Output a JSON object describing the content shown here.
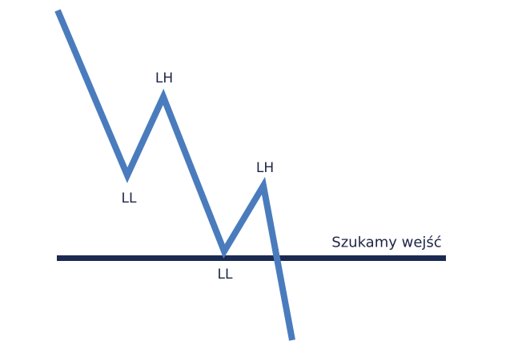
{
  "colors": {
    "price_line": "#4a7cbd",
    "level_line": "#1b2a52",
    "text": "#1c2445"
  },
  "labels": {
    "lh1": "LH",
    "ll1": "LL",
    "lh2": "LH",
    "ll2": "LL",
    "level": "Szukamy wejść"
  }
}
